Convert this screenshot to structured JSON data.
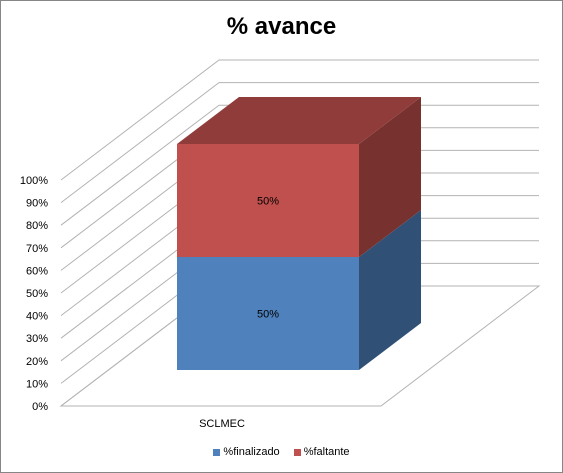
{
  "chart_data": {
    "type": "bar",
    "stacked": true,
    "three_d": true,
    "title": "% avance",
    "categories": [
      "SCLMEC"
    ],
    "series": [
      {
        "name": "%finalizado",
        "values": [
          0.5
        ],
        "label": "50%",
        "color": "#4F81BD"
      },
      {
        "name": "%faltante",
        "values": [
          0.5
        ],
        "label": "50%",
        "color": "#C0504D"
      }
    ],
    "ylim": [
      0,
      1
    ],
    "yticks": [
      "0%",
      "10%",
      "20%",
      "30%",
      "40%",
      "50%",
      "60%",
      "70%",
      "80%",
      "90%",
      "100%"
    ],
    "grid": true,
    "legend": "bottom"
  }
}
